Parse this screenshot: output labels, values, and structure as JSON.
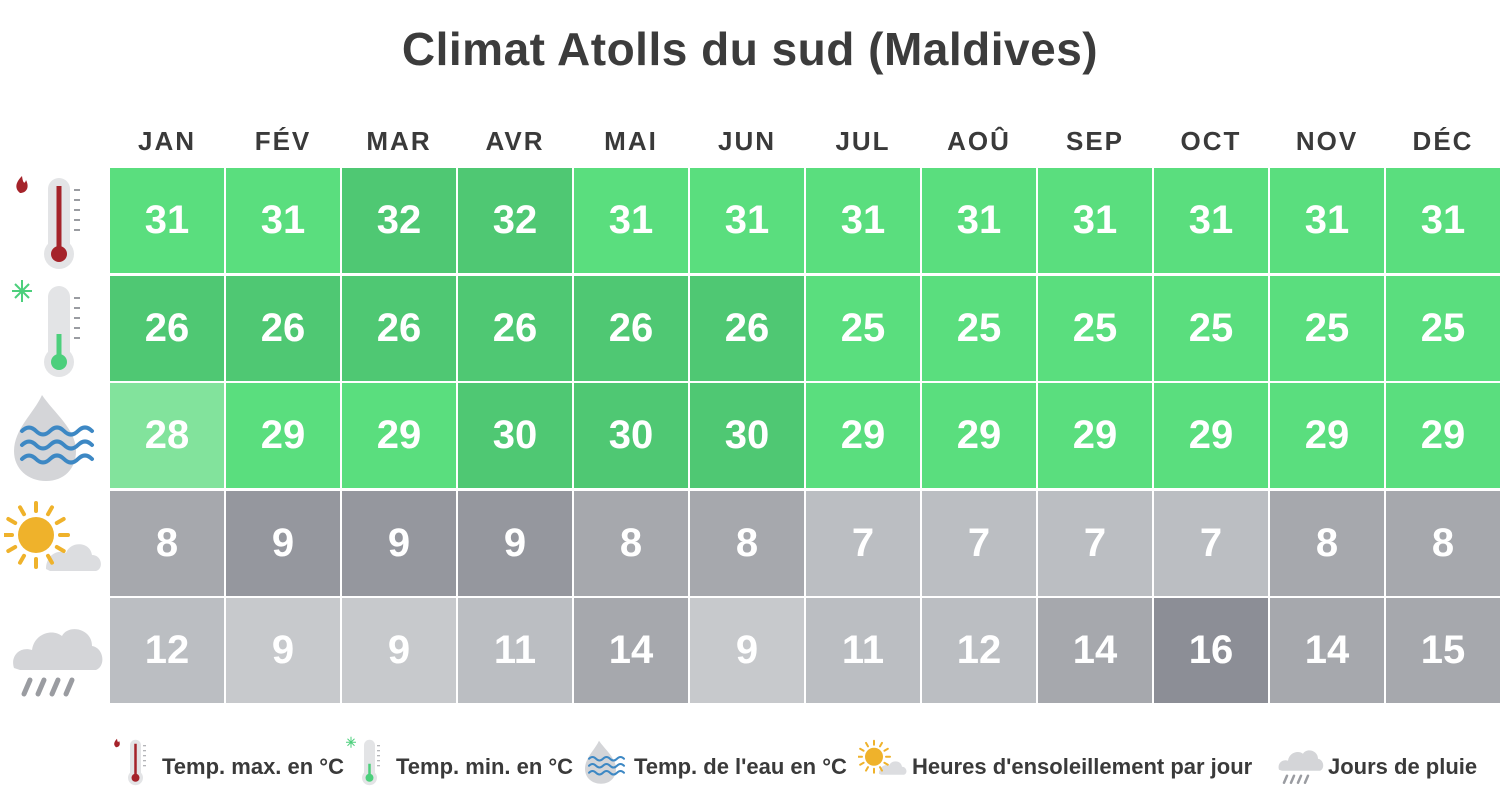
{
  "title": "Climat Atolls du sud (Maldives)",
  "chart_data": {
    "type": "table",
    "months": [
      "JAN",
      "FÉV",
      "MAR",
      "AVR",
      "MAI",
      "JUN",
      "JUL",
      "AOÛ",
      "SEP",
      "OCT",
      "NOV",
      "DÉC"
    ],
    "rows": [
      {
        "name": "Temp. max. en °C",
        "icon": "thermometer-hot-icon",
        "values": [
          31,
          31,
          32,
          32,
          31,
          31,
          31,
          31,
          31,
          31,
          31,
          31
        ]
      },
      {
        "name": "Temp. min. en °C",
        "icon": "thermometer-cold-icon",
        "values": [
          26,
          26,
          26,
          26,
          26,
          26,
          25,
          25,
          25,
          25,
          25,
          25
        ]
      },
      {
        "name": "Temp. de l'eau en °C",
        "icon": "water-temperature-icon",
        "values": [
          28,
          29,
          29,
          30,
          30,
          30,
          29,
          29,
          29,
          29,
          29,
          29
        ]
      },
      {
        "name": "Heures d'ensoleillement par jour",
        "icon": "sun-cloud-icon",
        "values": [
          8,
          9,
          9,
          9,
          8,
          8,
          7,
          7,
          7,
          7,
          8,
          8
        ]
      },
      {
        "name": "Jours de pluie",
        "icon": "rain-cloud-icon",
        "values": [
          12,
          9,
          9,
          11,
          14,
          9,
          11,
          12,
          14,
          16,
          14,
          15
        ]
      }
    ],
    "colors": {
      "green_light": "#82e39c",
      "green": "#5ade7e",
      "green_dark": "#4fc873",
      "grey_light": "#c7c9cc",
      "grey_mid": "#bbbec2",
      "grey": "#a6a8ad",
      "grey_dark": "#95979e",
      "grey_darker": "#8c8e96"
    }
  },
  "legend": [
    {
      "label": "Temp. max. en °C",
      "icon": "thermometer-hot-icon"
    },
    {
      "label": "Temp. min. en °C",
      "icon": "thermometer-cold-icon"
    },
    {
      "label": "Temp. de l'eau en °C",
      "icon": "water-temperature-icon"
    },
    {
      "label": "Heures d'ensoleillement par jour",
      "icon": "sun-cloud-icon"
    },
    {
      "label": "Jours de pluie",
      "icon": "rain-cloud-icon"
    }
  ]
}
